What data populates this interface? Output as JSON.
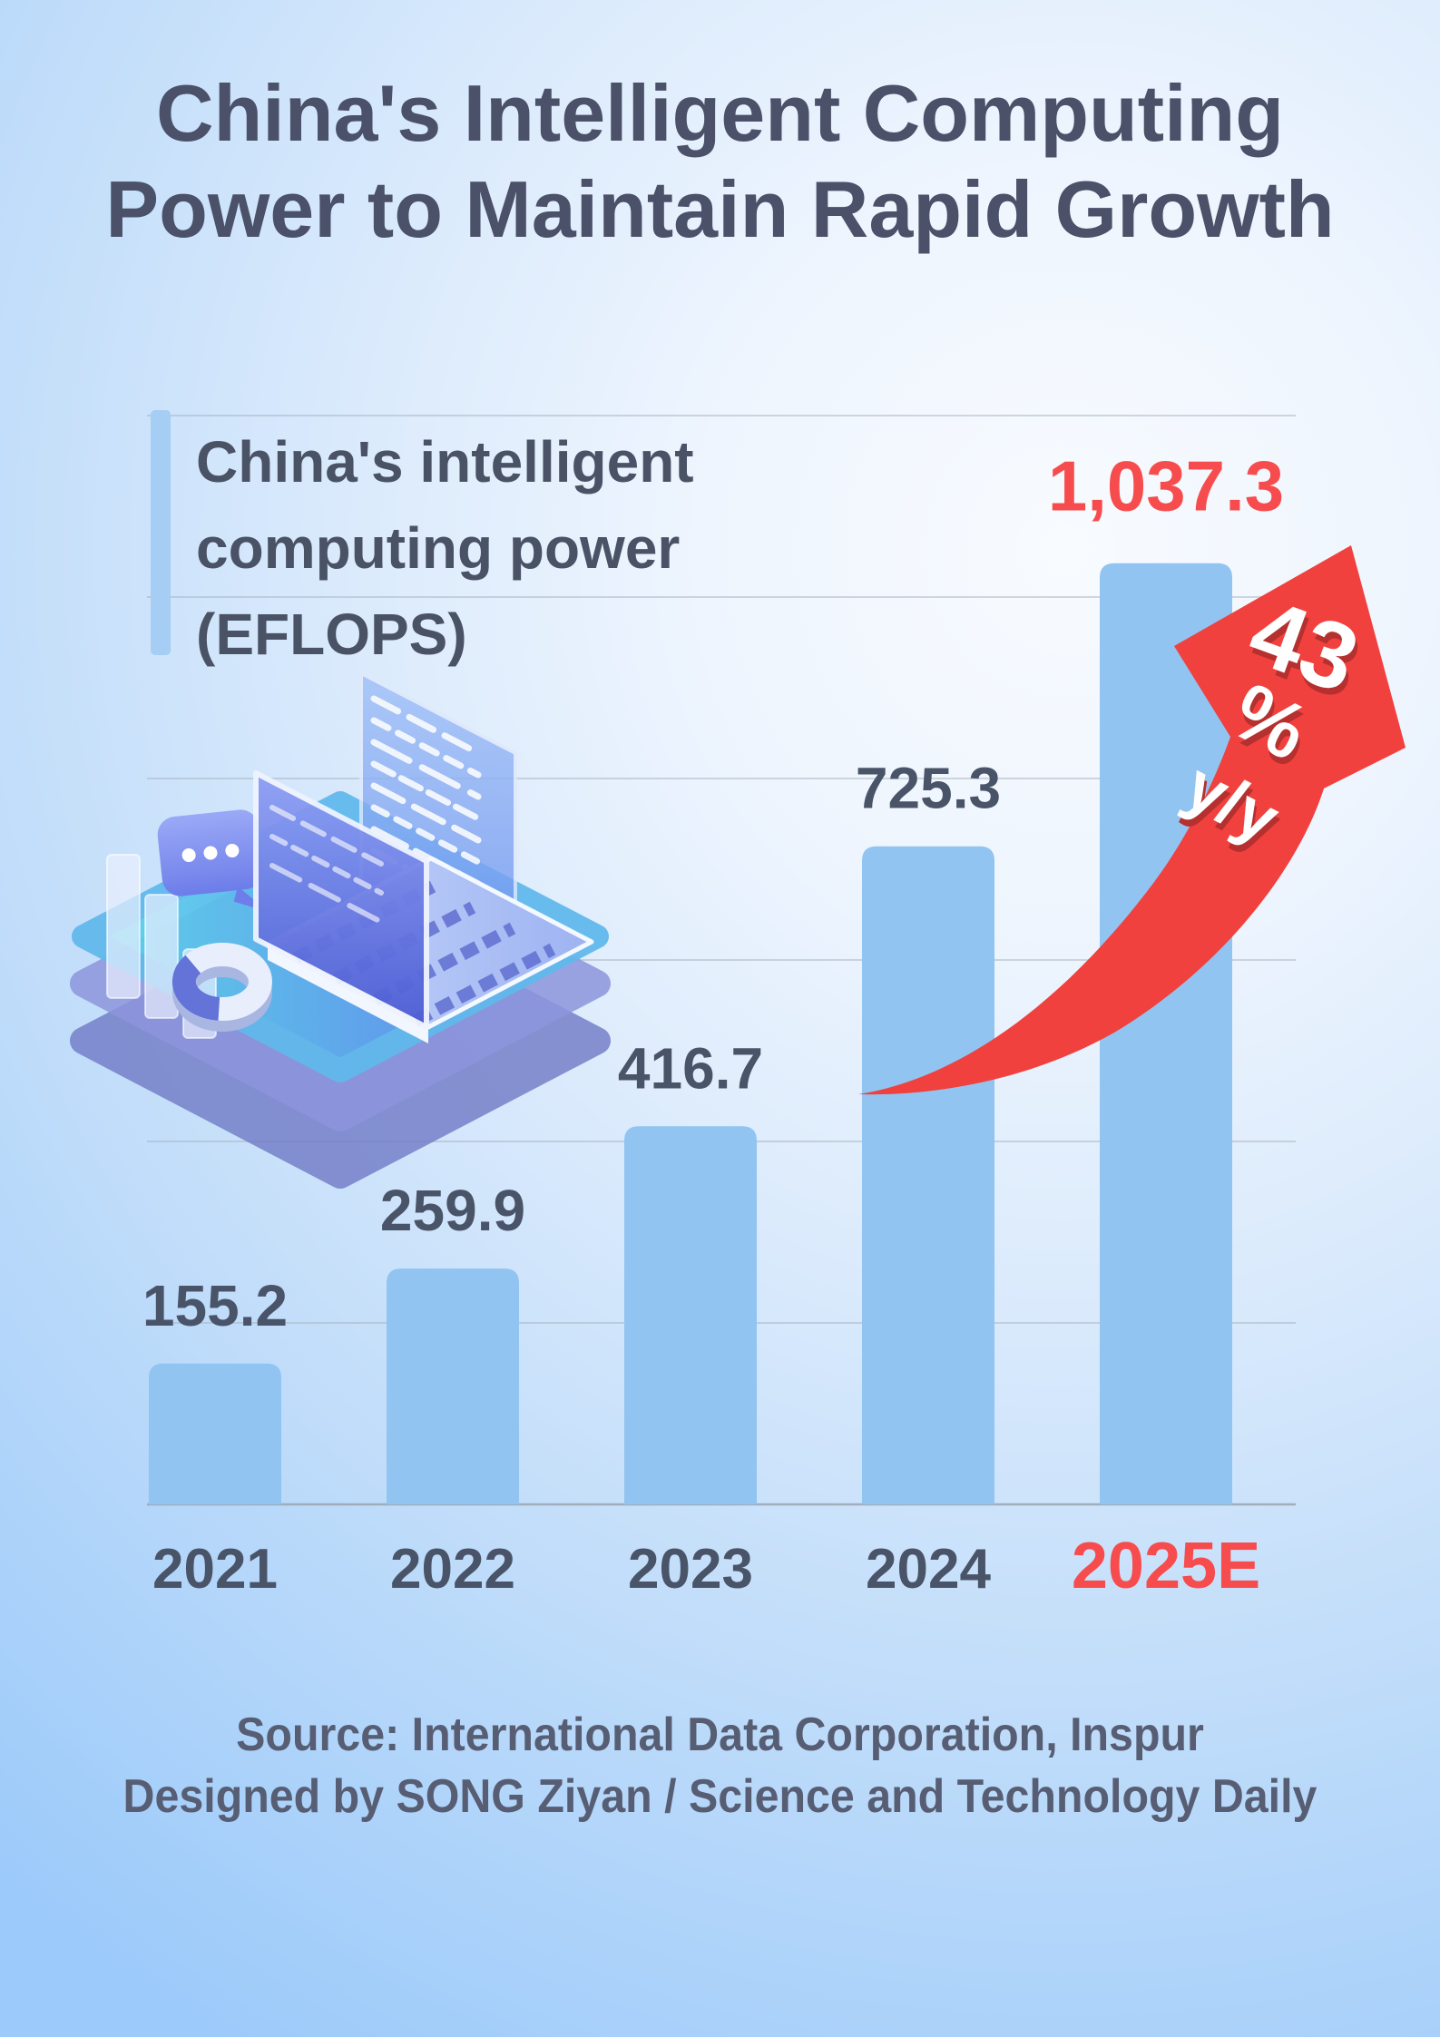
{
  "title": {
    "line1": "China's Intelligent Computing",
    "line2": "Power to Maintain Rapid Growth"
  },
  "legend": {
    "line1": "China's intelligent",
    "line2": "computing power",
    "line3": "(EFLOPS)"
  },
  "growth_badge": {
    "line1": "43",
    "line2": "%",
    "line3": "y/y"
  },
  "footer": {
    "line1": "Source: International Data Corporation, Inspur",
    "line2": "Designed by SONG Ziyan / Science and Technology Daily"
  },
  "colors": {
    "bar": "#91c4f1",
    "accent_bar": "#a6cdf3",
    "label": "#4a5469",
    "highlight": "#f74c4d",
    "arrow": "#f0413e",
    "arrow_text_shadow": "#b5302f",
    "gridline": "#a9b3bf",
    "axis": "#9aa5b1"
  },
  "chart_data": {
    "type": "bar",
    "title": "China's intelligent computing power (EFLOPS)",
    "xlabel": "",
    "ylabel": "EFLOPS",
    "categories": [
      "2021",
      "2022",
      "2023",
      "2024",
      "2025E"
    ],
    "values": [
      155.2,
      259.9,
      416.7,
      725.3,
      1037.3
    ],
    "value_labels": [
      "155.2",
      "259.9",
      "416.7",
      "725.3",
      "1,037.3"
    ],
    "highlight_index": 4,
    "growth_annotation": "43% y/y",
    "ylim": [
      0,
      1200
    ],
    "gridline_step": 200,
    "grid": true,
    "legend_position": "top-left"
  }
}
